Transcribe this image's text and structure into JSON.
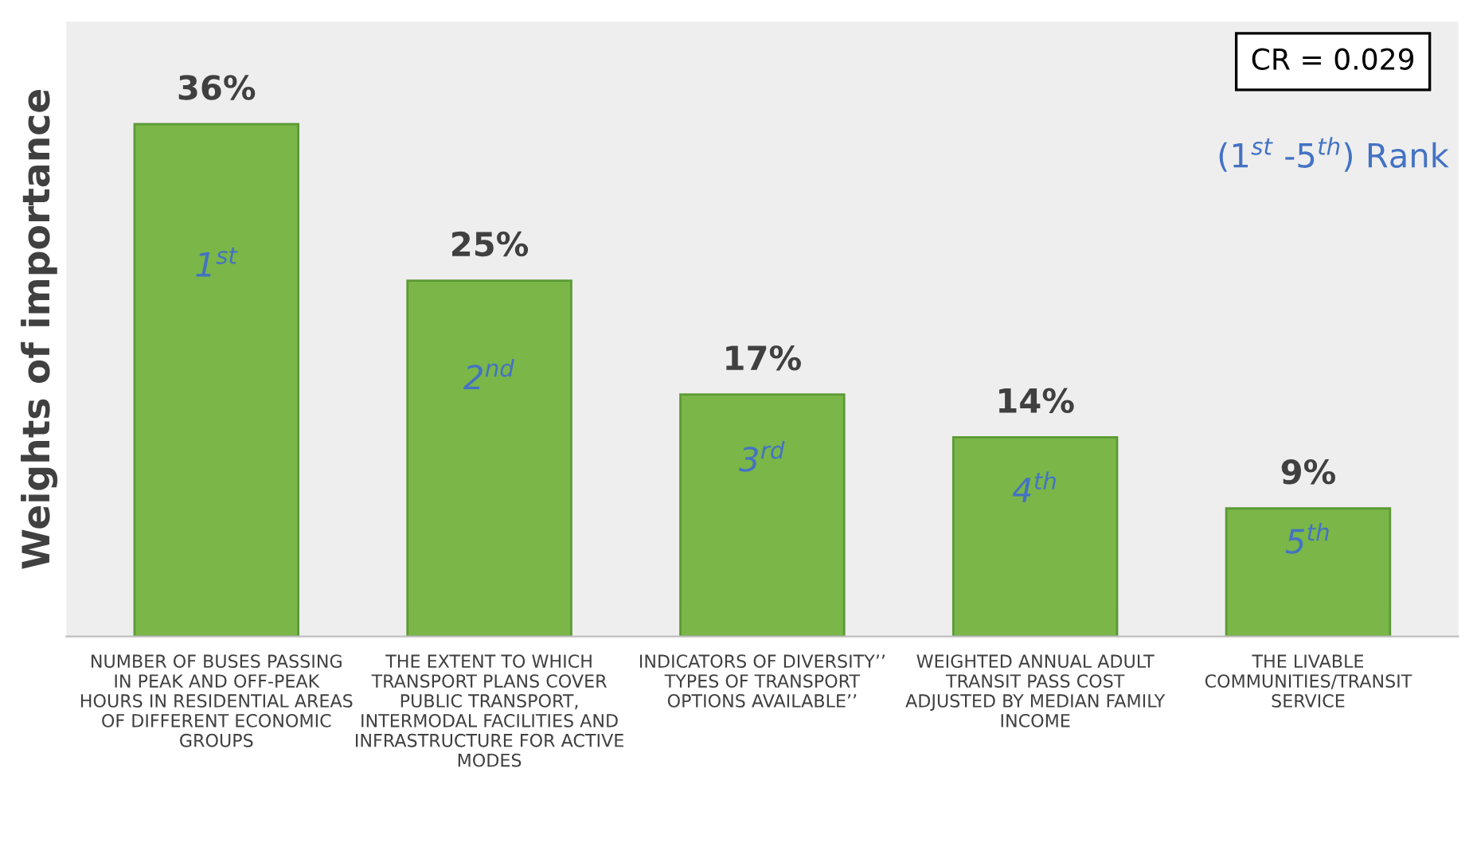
{
  "chart_data": {
    "type": "bar",
    "ylabel": "Weights of importance",
    "categories": [
      "NUMBER OF BUSES PASSING\nIN PEAK AND OFF-PEAK\nHOURS IN RESIDENTIAL AREAS\nOF DIFFERENT ECONOMIC\nGROUPS",
      "THE EXTENT TO WHICH\nTRANSPORT PLANS COVER\nPUBLIC TRANSPORT,\nINTERMODAL FACILITIES AND\nINFRASTRUCTURE FOR ACTIVE\nMODES",
      "INDICATORS OF DIVERSITY’’\nTYPES OF TRANSPORT\nOPTIONS AVAILABLE’’",
      "WEIGHTED ANNUAL ADULT\nTRANSIT PASS COST\nADJUSTED BY MEDIAN FAMILY\nINCOME",
      "THE LIVABLE\nCOMMUNITIES/TRANSIT\nSERVICE"
    ],
    "values": [
      36,
      25,
      17,
      14,
      9
    ],
    "value_labels": [
      "36%",
      "25%",
      "17%",
      "14%",
      "9%"
    ],
    "color": "#7ab648",
    "annotations": [
      "CR = 0.029",
      "(1$^{st}$ -5$^{th}$) Rank",
      "1$^{st}$",
      "2$^{nd}$",
      "3$^{rd}$",
      "4$^{th}$",
      "5$^{th}$"
    ],
    "legend": false,
    "grid": false
  }
}
